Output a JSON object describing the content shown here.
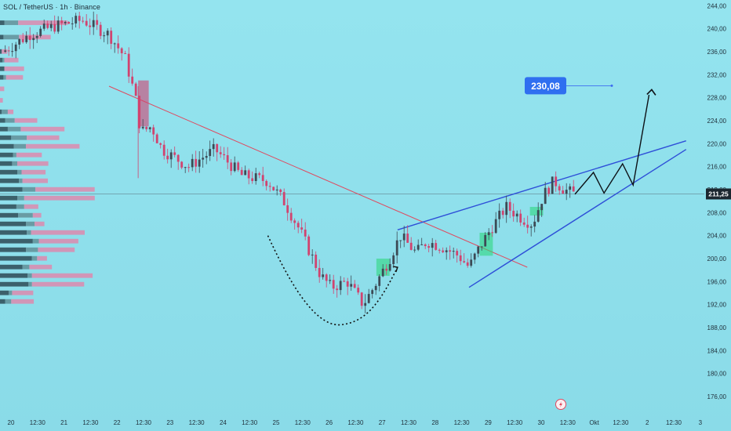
{
  "header": {
    "title": "SOL / TetherUS · 1h · Binance"
  },
  "colors": {
    "background": "#8ee0ec",
    "candle_up": "#3c4a55",
    "candle_down": "#d1436f",
    "trendline_red": "#e0485e",
    "channel_blue": "#2e4fd8",
    "target_bg": "#2f6ff0",
    "fvg_green": "#2fd77f",
    "volume_profile_dark": "#2e4a55",
    "volume_profile_light": "#5f8a92",
    "volume_profile_pink": "#dd8aae"
  },
  "chart_data": {
    "type": "candlestick",
    "title": "SOL / TetherUS · 1h · Binance",
    "y_ticks": [
      "244,00",
      "240,00",
      "236,00",
      "232,00",
      "228,00",
      "224,00",
      "220,00",
      "216,00",
      "212,00",
      "208,00",
      "204,00",
      "200,00",
      "196,00",
      "192,00",
      "188,00",
      "184,00",
      "180,00",
      "176,00"
    ],
    "ylim": [
      173,
      245
    ],
    "x_ticks": [
      "20",
      "12:30",
      "21",
      "12:30",
      "22",
      "12:30",
      "23",
      "12:30",
      "24",
      "12:30",
      "25",
      "12:30",
      "26",
      "12:30",
      "27",
      "12:30",
      "28",
      "12:30",
      "29",
      "12:30",
      "30",
      "12:30",
      "Okt",
      "12:30",
      "2",
      "12:30",
      "3"
    ],
    "current_price": "211,25",
    "target_price": "230,08",
    "price_path": [
      [
        0,
        236
      ],
      [
        0.5,
        239
      ],
      [
        1,
        240.5
      ],
      [
        1.5,
        241.5
      ],
      [
        2,
        239
      ],
      [
        2.3,
        235
      ],
      [
        2.5,
        228
      ],
      [
        2.6,
        222
      ],
      [
        2.8,
        223
      ],
      [
        3,
        219
      ],
      [
        3.5,
        216
      ],
      [
        4,
        219
      ],
      [
        4.5,
        214.5
      ],
      [
        5,
        213.5
      ],
      [
        5.3,
        210
      ],
      [
        5.6,
        205
      ],
      [
        6,
        197
      ],
      [
        6.2,
        195
      ],
      [
        6.5,
        196
      ],
      [
        6.8,
        192
      ],
      [
        7,
        195
      ],
      [
        7.3,
        200
      ],
      [
        7.5,
        204
      ],
      [
        7.8,
        201
      ],
      [
        8,
        203
      ],
      [
        8.3,
        202
      ],
      [
        8.6,
        200.5
      ],
      [
        8.8,
        198.5
      ],
      [
        9,
        202
      ],
      [
        9.2,
        205
      ],
      [
        9.5,
        209
      ],
      [
        9.8,
        207
      ],
      [
        10,
        206
      ],
      [
        10.2,
        211
      ],
      [
        10.4,
        213.5
      ],
      [
        10.6,
        212
      ],
      [
        10.8,
        211.2
      ]
    ],
    "projection": [
      [
        10.8,
        211.2
      ],
      [
        11.15,
        215
      ],
      [
        11.35,
        211.4
      ],
      [
        11.7,
        216.5
      ],
      [
        11.9,
        212.8
      ],
      [
        12.2,
        228.5
      ]
    ],
    "target_arrow_tip": [
      12.25,
      229.4
    ],
    "trendline_down": [
      [
        2.0,
        230
      ],
      [
        9.9,
        198.5
      ]
    ],
    "channel_upper": [
      [
        7.45,
        205
      ],
      [
        12.9,
        220.5
      ]
    ],
    "channel_lower": [
      [
        8.8,
        195
      ],
      [
        12.9,
        219
      ]
    ],
    "arc_points": [
      [
        5.0,
        204
      ],
      [
        5.5,
        194
      ],
      [
        6.4,
        188.5
      ],
      [
        7.1,
        192
      ],
      [
        7.45,
        198.5
      ]
    ],
    "volume_profile": [
      {
        "price": 241,
        "dark": 10,
        "light": 32,
        "pink": 70
      },
      {
        "price": 238.5,
        "dark": 8,
        "light": 36,
        "pink": 45
      },
      {
        "price": 236,
        "dark": 4,
        "light": 0,
        "pink": 8
      },
      {
        "price": 234.5,
        "dark": 6,
        "light": 4,
        "pink": 20
      },
      {
        "price": 233,
        "dark": 10,
        "light": 0,
        "pink": 28
      },
      {
        "price": 231.5,
        "dark": 8,
        "light": 6,
        "pink": 24
      },
      {
        "price": 229.5,
        "dark": 0,
        "light": 0,
        "pink": 6
      },
      {
        "price": 227.5,
        "dark": 0,
        "light": 0,
        "pink": 4
      },
      {
        "price": 225.5,
        "dark": 4,
        "light": 14,
        "pink": 8
      },
      {
        "price": 224,
        "dark": 12,
        "light": 22,
        "pink": 32
      },
      {
        "price": 222.5,
        "dark": 18,
        "light": 30,
        "pink": 62
      },
      {
        "price": 221,
        "dark": 26,
        "light": 36,
        "pink": 46
      },
      {
        "price": 219.5,
        "dark": 32,
        "light": 28,
        "pink": 76
      },
      {
        "price": 218,
        "dark": 30,
        "light": 8,
        "pink": 36
      },
      {
        "price": 216.5,
        "dark": 28,
        "light": 12,
        "pink": 44
      },
      {
        "price": 215,
        "dark": 40,
        "light": 10,
        "pink": 34
      },
      {
        "price": 213.5,
        "dark": 44,
        "light": 8,
        "pink": 36
      },
      {
        "price": 212,
        "dark": 52,
        "light": 30,
        "pink": 84
      },
      {
        "price": 210.5,
        "dark": 40,
        "light": 16,
        "pink": 100
      },
      {
        "price": 209,
        "dark": 38,
        "light": 18,
        "pink": 20
      },
      {
        "price": 207.5,
        "dark": 42,
        "light": 34,
        "pink": 12
      },
      {
        "price": 206,
        "dark": 60,
        "light": 20,
        "pink": 14
      },
      {
        "price": 204.5,
        "dark": 62,
        "light": 10,
        "pink": 76
      },
      {
        "price": 203,
        "dark": 76,
        "light": 14,
        "pink": 56
      },
      {
        "price": 201.5,
        "dark": 60,
        "light": 28,
        "pink": 52
      },
      {
        "price": 200,
        "dark": 74,
        "light": 12,
        "pink": 14
      },
      {
        "price": 198.5,
        "dark": 52,
        "light": 16,
        "pink": 32
      },
      {
        "price": 197,
        "dark": 64,
        "light": 10,
        "pink": 86
      },
      {
        "price": 195.5,
        "dark": 66,
        "light": 8,
        "pink": 74
      },
      {
        "price": 194,
        "dark": 20,
        "light": 8,
        "pink": 30
      },
      {
        "price": 192.5,
        "dark": 12,
        "light": 14,
        "pink": 32
      }
    ]
  }
}
